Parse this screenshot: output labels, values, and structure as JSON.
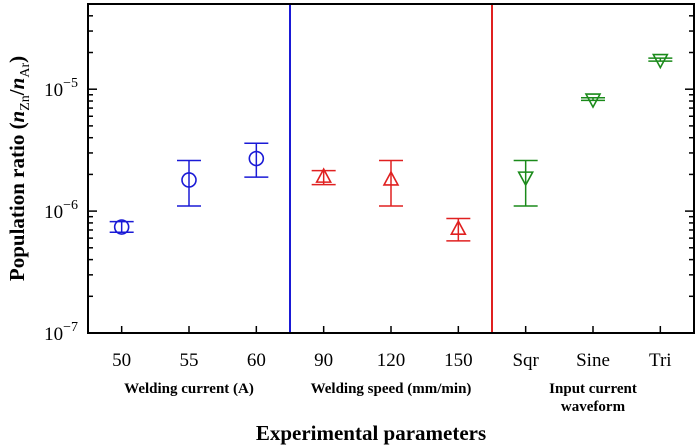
{
  "chart_data": {
    "type": "scatter",
    "title": "",
    "xlabel": "Experimental parameters",
    "ylabel_parts": [
      "Population ratio (",
      "n",
      "Zn",
      "/",
      "n",
      "Ar",
      ")"
    ],
    "yscale": "log",
    "ylim": [
      1e-07,
      5e-05
    ],
    "y_ticks": [
      {
        "value": 1e-07,
        "base": "10",
        "exp": "−7"
      },
      {
        "value": 1e-06,
        "base": "10",
        "exp": "−6"
      },
      {
        "value": 1e-05,
        "base": "10",
        "exp": "−5"
      }
    ],
    "categories": [
      "50",
      "55",
      "60",
      "90",
      "120",
      "150",
      "Sqr",
      "Sine",
      "Tri"
    ],
    "groups": [
      {
        "label_lines": [
          "Welding current (A)"
        ],
        "categories": [
          "50",
          "55",
          "60"
        ],
        "color": "#1a1ad6",
        "marker": "circle"
      },
      {
        "label_lines": [
          "Welding speed (mm/min)"
        ],
        "categories": [
          "90",
          "120",
          "150"
        ],
        "color": "#e02020",
        "marker": "triangle-up"
      },
      {
        "label_lines": [
          "Input current",
          "waveform"
        ],
        "categories": [
          "Sqr",
          "Sine",
          "Tri"
        ],
        "color": "#1a8a1a",
        "marker": "triangle-down"
      }
    ],
    "series": [
      {
        "category": "50",
        "y": 7.4e-07,
        "ymin": 6.7e-07,
        "ymax": 8.2e-07
      },
      {
        "category": "55",
        "y": 1.8e-06,
        "ymin": 1.1e-06,
        "ymax": 2.6e-06
      },
      {
        "category": "60",
        "y": 2.7e-06,
        "ymin": 1.9e-06,
        "ymax": 3.6e-06
      },
      {
        "category": "90",
        "y": 1.9e-06,
        "ymin": 1.65e-06,
        "ymax": 2.15e-06
      },
      {
        "category": "120",
        "y": 1.8e-06,
        "ymin": 1.1e-06,
        "ymax": 2.6e-06
      },
      {
        "category": "150",
        "y": 7.1e-07,
        "ymin": 5.7e-07,
        "ymax": 8.7e-07
      },
      {
        "category": "Sqr",
        "y": 1.9e-06,
        "ymin": 1.1e-06,
        "ymax": 2.6e-06
      },
      {
        "category": "Sine",
        "y": 8.3e-06,
        "ymin": 8.1e-06,
        "ymax": 8.5e-06
      },
      {
        "category": "Tri",
        "y": 1.75e-05,
        "ymin": 1.7e-05,
        "ymax": 1.8e-05
      }
    ],
    "dividers": [
      {
        "between": [
          "60",
          "90"
        ],
        "color": "#1a1ad6"
      },
      {
        "between": [
          "150",
          "Sqr"
        ],
        "color": "#e02020"
      }
    ],
    "grid": false,
    "legend": "none"
  }
}
